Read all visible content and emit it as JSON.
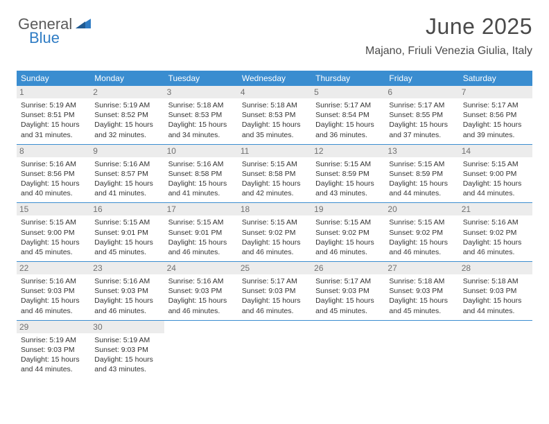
{
  "logo": {
    "text1": "General",
    "text2": "Blue"
  },
  "header": {
    "title": "June 2025",
    "subtitle": "Majano, Friuli Venezia Giulia, Italy"
  },
  "colors": {
    "header_bg": "#3a8dd0",
    "daynum_bg": "#ececec",
    "border": "#3a8dd0",
    "title_color": "#4a4a4a"
  },
  "weekdays": [
    "Sunday",
    "Monday",
    "Tuesday",
    "Wednesday",
    "Thursday",
    "Friday",
    "Saturday"
  ],
  "days": [
    {
      "n": "1",
      "sr": "Sunrise: 5:19 AM",
      "ss": "Sunset: 8:51 PM",
      "d1": "Daylight: 15 hours",
      "d2": "and 31 minutes."
    },
    {
      "n": "2",
      "sr": "Sunrise: 5:19 AM",
      "ss": "Sunset: 8:52 PM",
      "d1": "Daylight: 15 hours",
      "d2": "and 32 minutes."
    },
    {
      "n": "3",
      "sr": "Sunrise: 5:18 AM",
      "ss": "Sunset: 8:53 PM",
      "d1": "Daylight: 15 hours",
      "d2": "and 34 minutes."
    },
    {
      "n": "4",
      "sr": "Sunrise: 5:18 AM",
      "ss": "Sunset: 8:53 PM",
      "d1": "Daylight: 15 hours",
      "d2": "and 35 minutes."
    },
    {
      "n": "5",
      "sr": "Sunrise: 5:17 AM",
      "ss": "Sunset: 8:54 PM",
      "d1": "Daylight: 15 hours",
      "d2": "and 36 minutes."
    },
    {
      "n": "6",
      "sr": "Sunrise: 5:17 AM",
      "ss": "Sunset: 8:55 PM",
      "d1": "Daylight: 15 hours",
      "d2": "and 37 minutes."
    },
    {
      "n": "7",
      "sr": "Sunrise: 5:17 AM",
      "ss": "Sunset: 8:56 PM",
      "d1": "Daylight: 15 hours",
      "d2": "and 39 minutes."
    },
    {
      "n": "8",
      "sr": "Sunrise: 5:16 AM",
      "ss": "Sunset: 8:56 PM",
      "d1": "Daylight: 15 hours",
      "d2": "and 40 minutes."
    },
    {
      "n": "9",
      "sr": "Sunrise: 5:16 AM",
      "ss": "Sunset: 8:57 PM",
      "d1": "Daylight: 15 hours",
      "d2": "and 41 minutes."
    },
    {
      "n": "10",
      "sr": "Sunrise: 5:16 AM",
      "ss": "Sunset: 8:58 PM",
      "d1": "Daylight: 15 hours",
      "d2": "and 41 minutes."
    },
    {
      "n": "11",
      "sr": "Sunrise: 5:15 AM",
      "ss": "Sunset: 8:58 PM",
      "d1": "Daylight: 15 hours",
      "d2": "and 42 minutes."
    },
    {
      "n": "12",
      "sr": "Sunrise: 5:15 AM",
      "ss": "Sunset: 8:59 PM",
      "d1": "Daylight: 15 hours",
      "d2": "and 43 minutes."
    },
    {
      "n": "13",
      "sr": "Sunrise: 5:15 AM",
      "ss": "Sunset: 8:59 PM",
      "d1": "Daylight: 15 hours",
      "d2": "and 44 minutes."
    },
    {
      "n": "14",
      "sr": "Sunrise: 5:15 AM",
      "ss": "Sunset: 9:00 PM",
      "d1": "Daylight: 15 hours",
      "d2": "and 44 minutes."
    },
    {
      "n": "15",
      "sr": "Sunrise: 5:15 AM",
      "ss": "Sunset: 9:00 PM",
      "d1": "Daylight: 15 hours",
      "d2": "and 45 minutes."
    },
    {
      "n": "16",
      "sr": "Sunrise: 5:15 AM",
      "ss": "Sunset: 9:01 PM",
      "d1": "Daylight: 15 hours",
      "d2": "and 45 minutes."
    },
    {
      "n": "17",
      "sr": "Sunrise: 5:15 AM",
      "ss": "Sunset: 9:01 PM",
      "d1": "Daylight: 15 hours",
      "d2": "and 46 minutes."
    },
    {
      "n": "18",
      "sr": "Sunrise: 5:15 AM",
      "ss": "Sunset: 9:02 PM",
      "d1": "Daylight: 15 hours",
      "d2": "and 46 minutes."
    },
    {
      "n": "19",
      "sr": "Sunrise: 5:15 AM",
      "ss": "Sunset: 9:02 PM",
      "d1": "Daylight: 15 hours",
      "d2": "and 46 minutes."
    },
    {
      "n": "20",
      "sr": "Sunrise: 5:15 AM",
      "ss": "Sunset: 9:02 PM",
      "d1": "Daylight: 15 hours",
      "d2": "and 46 minutes."
    },
    {
      "n": "21",
      "sr": "Sunrise: 5:16 AM",
      "ss": "Sunset: 9:02 PM",
      "d1": "Daylight: 15 hours",
      "d2": "and 46 minutes."
    },
    {
      "n": "22",
      "sr": "Sunrise: 5:16 AM",
      "ss": "Sunset: 9:03 PM",
      "d1": "Daylight: 15 hours",
      "d2": "and 46 minutes."
    },
    {
      "n": "23",
      "sr": "Sunrise: 5:16 AM",
      "ss": "Sunset: 9:03 PM",
      "d1": "Daylight: 15 hours",
      "d2": "and 46 minutes."
    },
    {
      "n": "24",
      "sr": "Sunrise: 5:16 AM",
      "ss": "Sunset: 9:03 PM",
      "d1": "Daylight: 15 hours",
      "d2": "and 46 minutes."
    },
    {
      "n": "25",
      "sr": "Sunrise: 5:17 AM",
      "ss": "Sunset: 9:03 PM",
      "d1": "Daylight: 15 hours",
      "d2": "and 46 minutes."
    },
    {
      "n": "26",
      "sr": "Sunrise: 5:17 AM",
      "ss": "Sunset: 9:03 PM",
      "d1": "Daylight: 15 hours",
      "d2": "and 45 minutes."
    },
    {
      "n": "27",
      "sr": "Sunrise: 5:18 AM",
      "ss": "Sunset: 9:03 PM",
      "d1": "Daylight: 15 hours",
      "d2": "and 45 minutes."
    },
    {
      "n": "28",
      "sr": "Sunrise: 5:18 AM",
      "ss": "Sunset: 9:03 PM",
      "d1": "Daylight: 15 hours",
      "d2": "and 44 minutes."
    },
    {
      "n": "29",
      "sr": "Sunrise: 5:19 AM",
      "ss": "Sunset: 9:03 PM",
      "d1": "Daylight: 15 hours",
      "d2": "and 44 minutes."
    },
    {
      "n": "30",
      "sr": "Sunrise: 5:19 AM",
      "ss": "Sunset: 9:03 PM",
      "d1": "Daylight: 15 hours",
      "d2": "and 43 minutes."
    }
  ]
}
